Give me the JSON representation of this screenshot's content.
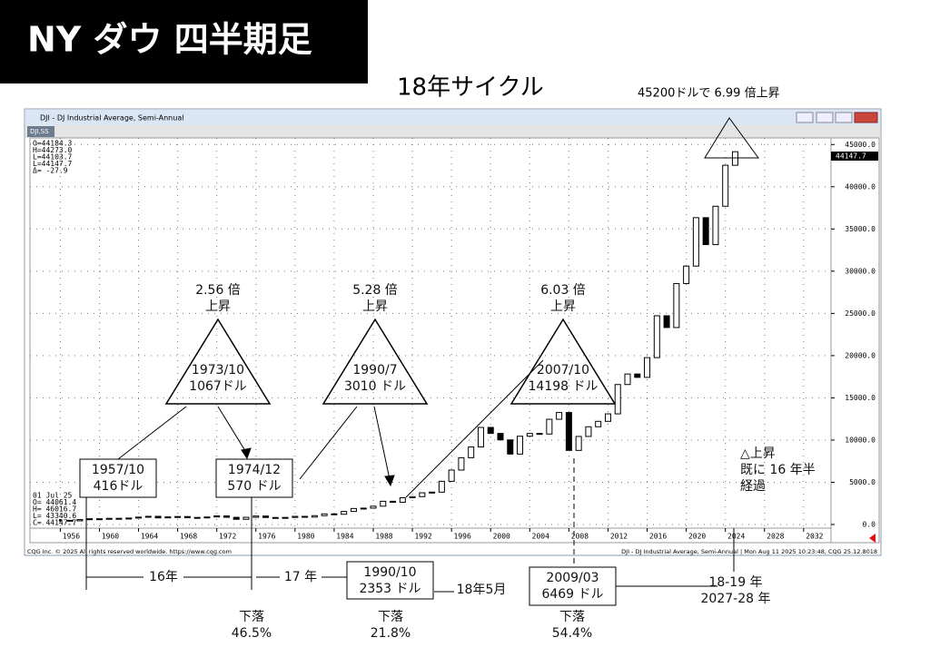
{
  "header": {
    "title": "NY ダウ 四半期足",
    "subtitle": "18年サイクル",
    "note": "45200ドルで 6.99 倍上昇"
  },
  "window": {
    "title": "DJI - DJ Industrial Average, Semi-Annual",
    "tab": "DJI,SS",
    "info_top": [
      "O=44184.3",
      "H=44273.0",
      "L=44103.7",
      "L=44147.7",
      "Δ=   -27.9"
    ],
    "info_bottom": [
      "01 Jul 25",
      "O= 44061.4",
      "H= 46016.7",
      "L= 43340.6",
      "C= 44147.7"
    ],
    "last_price": "44147.7",
    "footer_left": "CQG Inc. © 2025 All rights reserved worldwide. https://www.cqg.com",
    "footer_right": "DJI - DJ Industrial Average, Semi-Annual | Mon Aug 11 2025 10:23:48, CQG 25.12.8018"
  },
  "chart_data": {
    "type": "candlestick",
    "color": "#000000",
    "grid": true,
    "x": [
      1956,
      1957,
      1958,
      1959,
      1960,
      1961,
      1962,
      1963,
      1964,
      1965,
      1966,
      1967,
      1968,
      1969,
      1970,
      1971,
      1972,
      1973,
      1974,
      1975,
      1976,
      1977,
      1978,
      1979,
      1980,
      1981,
      1982,
      1983,
      1984,
      1985,
      1986,
      1987,
      1988,
      1989,
      1990,
      1991,
      1992,
      1993,
      1994,
      1995,
      1996,
      1997,
      1998,
      1999,
      2000,
      2001,
      2002,
      2003,
      2004,
      2005,
      2006,
      2007,
      2008,
      2009,
      2010,
      2011,
      2012,
      2013,
      2014,
      2015,
      2016,
      2017,
      2018,
      2019,
      2020,
      2021,
      2022,
      2023,
      2024,
      2025
    ],
    "close": [
      500,
      436,
      584,
      679,
      616,
      731,
      652,
      763,
      874,
      969,
      786,
      905,
      944,
      800,
      839,
      890,
      1020,
      851,
      616,
      852,
      1005,
      831,
      805,
      839,
      964,
      875,
      1047,
      1259,
      1212,
      1547,
      1896,
      1939,
      2169,
      2753,
      2634,
      3169,
      3301,
      3754,
      3834,
      5117,
      6448,
      7908,
      9181,
      11497,
      10787,
      10021,
      8342,
      10454,
      10783,
      10718,
      12463,
      13265,
      8776,
      10428,
      11578,
      12218,
      13104,
      16577,
      17823,
      17425,
      19763,
      24719,
      23327,
      28538,
      30606,
      36338,
      33147,
      37690,
      42544,
      44147.7
    ],
    "xlim": [
      1952.9,
      2034.8
    ],
    "xticks": [
      1956,
      1960,
      1964,
      1968,
      1972,
      1976,
      1980,
      1984,
      1988,
      1992,
      1996,
      2000,
      2004,
      2008,
      2012,
      2016,
      2020,
      2024,
      2028,
      2032
    ],
    "ylim": [
      -430,
      45780
    ],
    "yticks": [
      {
        "value": 0,
        "label": "0.0"
      },
      {
        "value": 5000,
        "label": "5000.0"
      },
      {
        "value": 10000,
        "label": "10000.0"
      },
      {
        "value": 15000,
        "label": "15000.0"
      },
      {
        "value": 20000,
        "label": "20000.0"
      },
      {
        "value": 25000,
        "label": "25000.0"
      },
      {
        "value": 30000,
        "label": "30000.0"
      },
      {
        "value": 35000,
        "label": "35000.0"
      },
      {
        "value": 40000,
        "label": "40000.0"
      },
      {
        "value": 45000,
        "label": "45000.0"
      }
    ]
  },
  "annotations": {
    "peaks": [
      {
        "gain": [
          "2.56 倍",
          "上昇"
        ],
        "date": "1973/10",
        "price": "1067ドル"
      },
      {
        "gain": [
          "5.28 倍",
          "上昇"
        ],
        "date": "1990/7",
        "price": "3010 ドル"
      },
      {
        "gain": [
          "6.03 倍",
          "上昇"
        ],
        "date": "2007/10",
        "price": "14198 ドル"
      }
    ],
    "troughs": [
      {
        "date": "1957/10",
        "price": "416ドル"
      },
      {
        "date": "1974/12",
        "price": "570 ドル"
      },
      {
        "date": "1990/10",
        "price": "2353 ドル"
      },
      {
        "date": "2009/03",
        "price": "6469 ドル"
      }
    ],
    "drops": [
      [
        "下落",
        "46.5%"
      ],
      [
        "下落",
        "21.8%"
      ],
      [
        "下落",
        "54.4%"
      ]
    ],
    "spans": [
      "16年",
      "17 年",
      "18年5月"
    ],
    "now": [
      "△上昇",
      "既に 16 年半",
      "経過"
    ],
    "forecast": [
      "18-19 年",
      "2027-28 年"
    ]
  }
}
